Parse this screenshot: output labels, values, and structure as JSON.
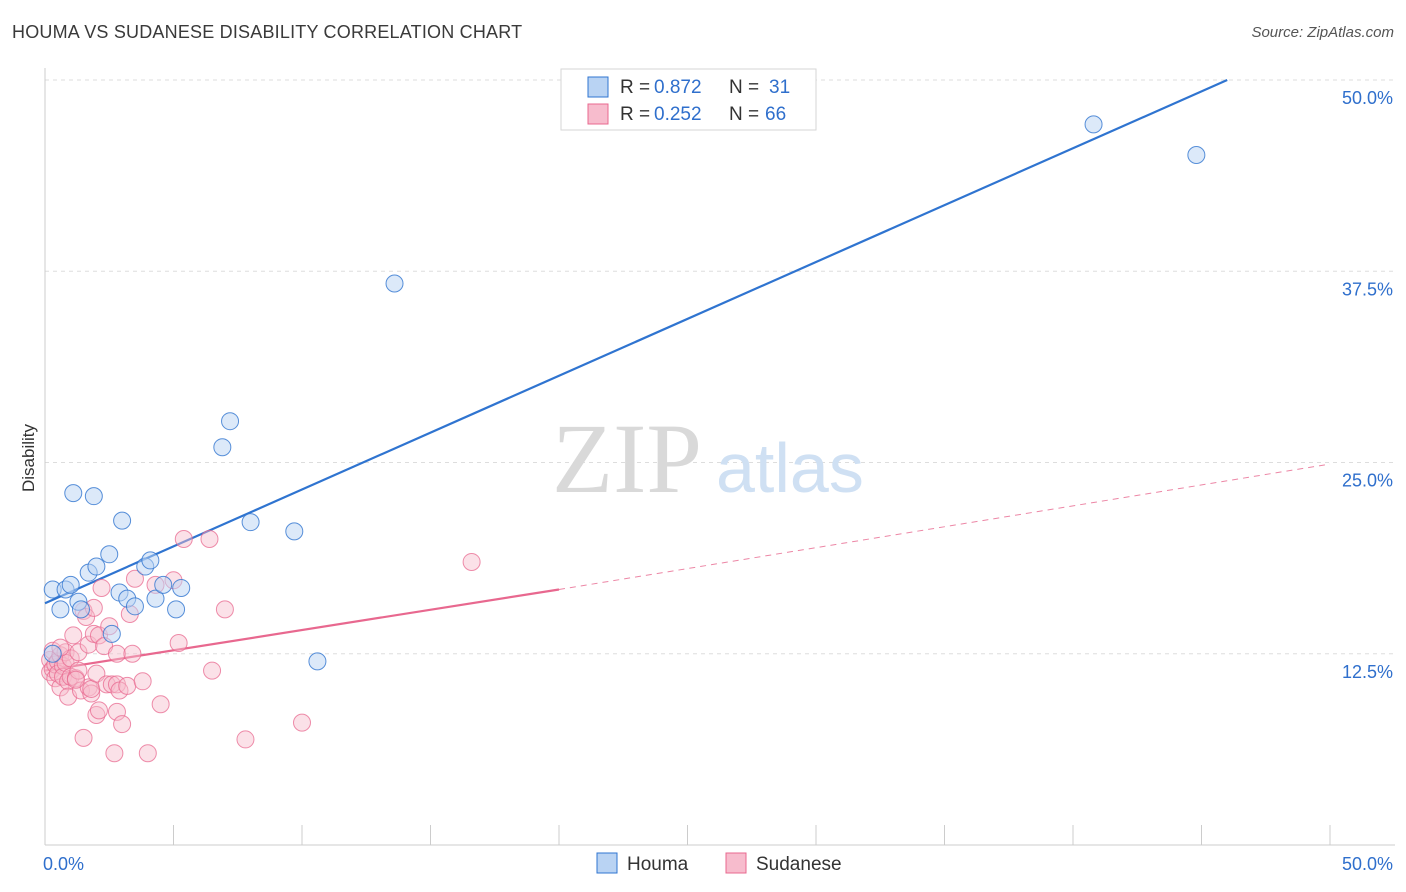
{
  "header": {
    "title": "HOUMA VS SUDANESE DISABILITY CORRELATION CHART",
    "source": "Source: ZipAtlas.com"
  },
  "watermark": {
    "part1": "ZIP",
    "part2": "atlas"
  },
  "colors": {
    "houma": "#2f74d0",
    "houma_fill": "#b9d3f3",
    "sudanese": "#e8688f",
    "sudanese_fill": "#f7bccd",
    "grid": "#dddddd",
    "axis_label": "#2f6fcc"
  },
  "legend": {
    "houma": {
      "r_label": "R = ",
      "r_value": "0.872",
      "n_label": "N = ",
      "n_value": "31"
    },
    "sudanese": {
      "r_label": "R = ",
      "r_value": "0.252",
      "n_label": "N = ",
      "n_value": "66"
    }
  },
  "bottom_legend": [
    "Houma",
    "Sudanese"
  ],
  "chart_data": {
    "type": "scatter",
    "title": "HOUMA VS SUDANESE DISABILITY CORRELATION CHART",
    "xlabel": "",
    "ylabel": "Disability",
    "xlim": [
      0,
      50
    ],
    "ylim": [
      0,
      50
    ],
    "x_tick_labels": [
      "0.0%",
      "50.0%"
    ],
    "y_tick_labels": [
      "12.5%",
      "25.0%",
      "37.5%",
      "50.0%"
    ],
    "y_ticks": [
      12.5,
      25.0,
      37.5,
      50.0
    ],
    "series": [
      {
        "name": "Houma",
        "r": 0.872,
        "n": 31,
        "trend": {
          "x0": 0,
          "y0": 15.8,
          "x1": 46,
          "y1": 50.0,
          "style": "solid"
        },
        "points": [
          [
            0.3,
            12.5
          ],
          [
            0.3,
            16.7
          ],
          [
            0.6,
            15.4
          ],
          [
            0.8,
            16.7
          ],
          [
            1.0,
            17.0
          ],
          [
            1.1,
            23.0
          ],
          [
            1.3,
            15.9
          ],
          [
            1.4,
            15.4
          ],
          [
            1.7,
            17.8
          ],
          [
            1.9,
            22.8
          ],
          [
            2.0,
            18.2
          ],
          [
            2.5,
            19.0
          ],
          [
            2.6,
            13.8
          ],
          [
            2.9,
            16.5
          ],
          [
            3.0,
            21.2
          ],
          [
            3.2,
            16.1
          ],
          [
            3.5,
            15.6
          ],
          [
            3.9,
            18.2
          ],
          [
            4.1,
            18.6
          ],
          [
            4.3,
            16.1
          ],
          [
            4.6,
            17.0
          ],
          [
            5.1,
            15.4
          ],
          [
            5.3,
            16.8
          ],
          [
            6.9,
            26.0
          ],
          [
            7.2,
            27.7
          ],
          [
            8.0,
            21.1
          ],
          [
            9.7,
            20.5
          ],
          [
            10.6,
            12.0
          ],
          [
            13.6,
            36.7
          ],
          [
            40.8,
            47.1
          ],
          [
            44.8,
            45.1
          ]
        ]
      },
      {
        "name": "Sudanese",
        "r": 0.252,
        "n": 66,
        "trend": {
          "x0": 0,
          "y0": 11.4,
          "x1": 20,
          "y1": 16.7,
          "style": "solid",
          "extension": {
            "x0": 20,
            "y0": 16.7,
            "x1": 50,
            "y1": 24.9,
            "style": "dashed"
          }
        },
        "points": [
          [
            0.2,
            12.1
          ],
          [
            0.2,
            11.3
          ],
          [
            0.3,
            12.7
          ],
          [
            0.3,
            11.5
          ],
          [
            0.4,
            10.9
          ],
          [
            0.4,
            11.8
          ],
          [
            0.5,
            12.0
          ],
          [
            0.5,
            11.2
          ],
          [
            0.6,
            10.3
          ],
          [
            0.6,
            12.4
          ],
          [
            0.7,
            11.7
          ],
          [
            0.7,
            11.0
          ],
          [
            0.8,
            12.6
          ],
          [
            0.8,
            11.9
          ],
          [
            0.9,
            10.7
          ],
          [
            0.9,
            9.7
          ],
          [
            1.0,
            12.2
          ],
          [
            1.0,
            11.0
          ],
          [
            1.1,
            13.7
          ],
          [
            1.2,
            10.9
          ],
          [
            1.3,
            12.6
          ],
          [
            1.3,
            11.4
          ],
          [
            1.4,
            10.1
          ],
          [
            1.5,
            7.0
          ],
          [
            1.5,
            15.3
          ],
          [
            1.6,
            14.9
          ],
          [
            1.7,
            10.3
          ],
          [
            1.7,
            13.1
          ],
          [
            1.8,
            9.9
          ],
          [
            1.8,
            10.2
          ],
          [
            1.9,
            15.5
          ],
          [
            1.9,
            13.8
          ],
          [
            2.0,
            11.2
          ],
          [
            2.0,
            8.5
          ],
          [
            2.1,
            13.7
          ],
          [
            2.2,
            16.8
          ],
          [
            2.3,
            13.0
          ],
          [
            2.4,
            10.5
          ],
          [
            2.5,
            14.3
          ],
          [
            2.6,
            10.5
          ],
          [
            2.7,
            6.0
          ],
          [
            2.8,
            12.5
          ],
          [
            2.8,
            8.7
          ],
          [
            2.8,
            10.5
          ],
          [
            2.9,
            10.1
          ],
          [
            3.0,
            7.9
          ],
          [
            3.2,
            10.4
          ],
          [
            3.3,
            15.1
          ],
          [
            3.4,
            12.5
          ],
          [
            3.5,
            17.4
          ],
          [
            3.8,
            10.7
          ],
          [
            4.0,
            6.0
          ],
          [
            4.3,
            17.0
          ],
          [
            4.5,
            9.2
          ],
          [
            5.0,
            17.3
          ],
          [
            5.2,
            13.2
          ],
          [
            5.4,
            20.0
          ],
          [
            6.4,
            20.0
          ],
          [
            6.5,
            11.4
          ],
          [
            7.0,
            15.4
          ],
          [
            7.8,
            6.9
          ],
          [
            10.0,
            8.0
          ],
          [
            16.6,
            18.5
          ],
          [
            2.1,
            8.8
          ],
          [
            1.2,
            10.8
          ],
          [
            0.6,
            12.9
          ]
        ]
      }
    ]
  },
  "axis_title_y": "Disability"
}
